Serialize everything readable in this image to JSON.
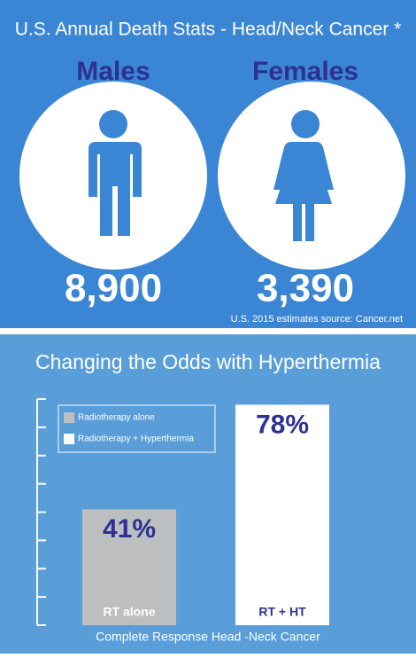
{
  "header": {
    "title": "U.S. Annual Death Stats - Head/Neck Cancer *",
    "stats": [
      {
        "label": "Males",
        "value": "8,900"
      },
      {
        "label": "Females",
        "value": "3,390"
      }
    ],
    "source": "U.S. 2015 estimates source: Cancer.net"
  },
  "chart_data": {
    "type": "bar",
    "title": "Changing the Odds with Hyperthermia",
    "x_label": "Complete Response Head -Neck Cancer",
    "categories": [
      "RT alone",
      "RT + HT"
    ],
    "values": [
      41,
      78
    ],
    "value_labels": [
      "41%",
      "78%"
    ],
    "colors": [
      "#bcbec0",
      "#ffffff"
    ],
    "legend": [
      "Radiotherapy alone",
      "Radiotherapy + Hyperthermia"
    ],
    "ylim": [
      0,
      80
    ],
    "yticks": [
      0,
      10,
      20,
      30,
      40,
      50,
      60,
      70,
      80
    ]
  }
}
